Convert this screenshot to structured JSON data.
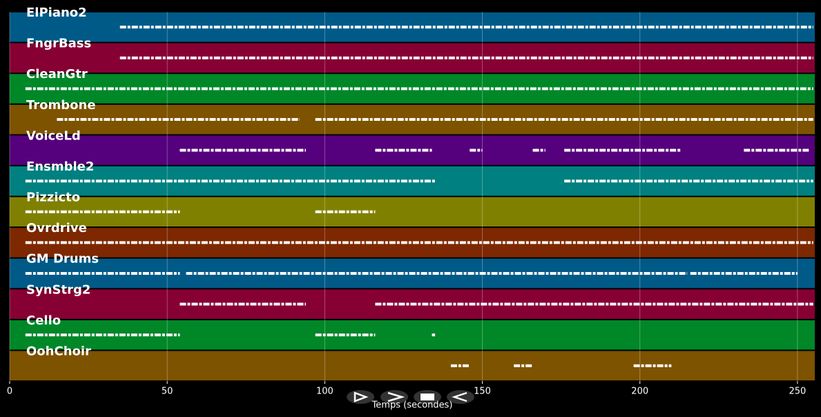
{
  "chart_data": {
    "type": "piano-roll",
    "xlabel": "Temps (secondes)",
    "xlim": [
      0,
      255.5
    ],
    "xticks": [
      0,
      50,
      100,
      150,
      200,
      250
    ],
    "grid": true,
    "tracks": [
      {
        "name": "ElPiano2",
        "color": "#005a87",
        "segments": [
          [
            35,
            255
          ]
        ]
      },
      {
        "name": "FngrBass",
        "color": "#870033",
        "segments": [
          [
            35,
            255
          ]
        ]
      },
      {
        "name": "CleanGtr",
        "color": "#008728",
        "segments": [
          [
            5,
            255
          ]
        ]
      },
      {
        "name": "Trombone",
        "color": "#7d5300",
        "segments": [
          [
            15,
            92
          ],
          [
            97,
            255
          ]
        ]
      },
      {
        "name": "VoiceLd",
        "color": "#55007d",
        "segments": [
          [
            54,
            94
          ],
          [
            116,
            134
          ],
          [
            146,
            150
          ],
          [
            166,
            170
          ],
          [
            176,
            213
          ],
          [
            233,
            254
          ]
        ]
      },
      {
        "name": "Ensmble2",
        "color": "#008080",
        "segments": [
          [
            5,
            135
          ],
          [
            176,
            255
          ]
        ]
      },
      {
        "name": "Pizzicto",
        "color": "#808000",
        "segments": [
          [
            5,
            54
          ],
          [
            97,
            116
          ]
        ]
      },
      {
        "name": "Ovrdrive",
        "color": "#7d2800",
        "segments": [
          [
            5,
            255
          ]
        ]
      },
      {
        "name": "GM Drums",
        "color": "#005a87",
        "segments": [
          [
            5,
            54
          ],
          [
            56,
            215
          ],
          [
            216,
            250
          ]
        ]
      },
      {
        "name": "SynStrg2",
        "color": "#870033",
        "segments": [
          [
            54,
            94
          ],
          [
            116,
            255
          ]
        ]
      },
      {
        "name": "Cello",
        "color": "#008728",
        "segments": [
          [
            5,
            54
          ],
          [
            97,
            116
          ],
          [
            134,
            135
          ]
        ]
      },
      {
        "name": "OohChoir",
        "color": "#7d5300",
        "segments": [
          [
            140,
            146
          ],
          [
            160,
            166
          ],
          [
            198,
            210
          ]
        ]
      }
    ]
  }
}
